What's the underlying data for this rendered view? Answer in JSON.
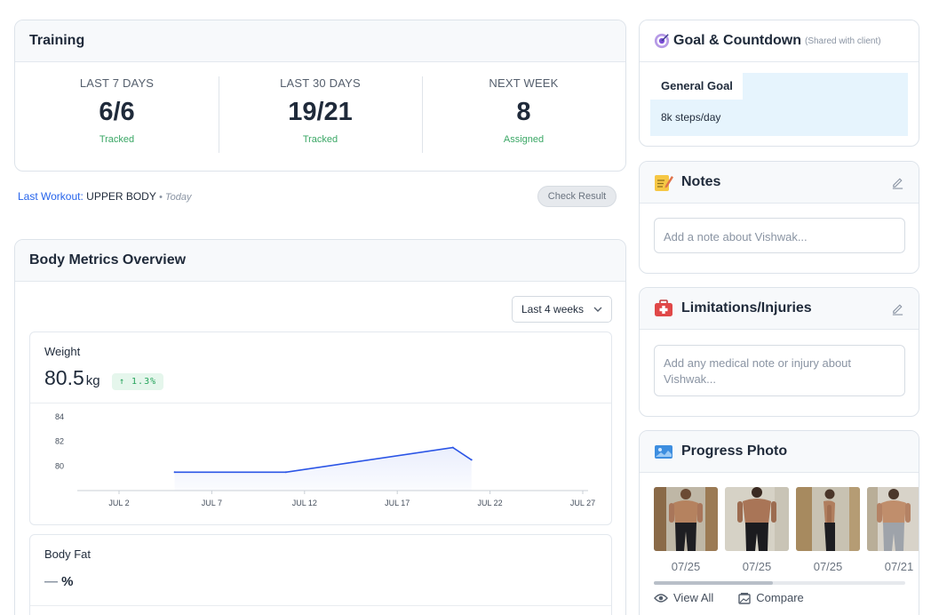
{
  "training": {
    "title": "Training",
    "stats": [
      {
        "label": "LAST 7 DAYS",
        "value": "6/6",
        "sub": "Tracked"
      },
      {
        "label": "LAST 30 DAYS",
        "value": "19/21",
        "sub": "Tracked"
      },
      {
        "label": "NEXT WEEK",
        "value": "8",
        "sub": "Assigned"
      }
    ],
    "last_workout_label": "Last Workout:",
    "last_workout_value": "UPPER BODY",
    "last_workout_day": "• Today",
    "check_result": "Check Result"
  },
  "metrics": {
    "title": "Body Metrics Overview",
    "range": "Last 4 weeks",
    "weight": {
      "title": "Weight",
      "value": "80.5",
      "unit": "kg",
      "change": "↑ 1.3%"
    },
    "bodyfat": {
      "title": "Body Fat",
      "value": "—",
      "unit": "%"
    }
  },
  "chart_data": {
    "type": "area",
    "title": "Weight",
    "x_ticks": [
      "JUL 2",
      "JUL 7",
      "JUL 12",
      "JUL 17",
      "JUL 22",
      "JUL 27"
    ],
    "y_ticks": [
      "84",
      "82",
      "80"
    ],
    "ylim": [
      78,
      84
    ],
    "x_range": [
      "Jul 2",
      "Jul 27"
    ],
    "series": [
      {
        "values": [
          {
            "x": "Jul 5",
            "y": 79.5
          },
          {
            "x": "Jul 11",
            "y": 79.5
          },
          {
            "x": "Jul 20",
            "y": 81.5
          },
          {
            "x": "Jul 21",
            "y": 80.5
          }
        ]
      }
    ],
    "line_color": "#2b55e6",
    "grid": false
  },
  "goal": {
    "title": "Goal & Countdown",
    "note": "(Shared with client)",
    "label": "General Goal",
    "value": "8k steps/day"
  },
  "notes": {
    "title": "Notes",
    "placeholder": "Add a note about Vishwak..."
  },
  "limits": {
    "title": "Limitations/Injuries",
    "placeholder": "Add any medical note or injury about Vishwak..."
  },
  "progress": {
    "title": "Progress Photo",
    "dates": [
      "07/25",
      "07/25",
      "07/25",
      "07/21"
    ],
    "view_all": "View All",
    "compare": "Compare"
  },
  "colors": {
    "accent_blue": "#2563eb",
    "success_green": "#3aa765",
    "goal_bg": "#e6f4fd"
  }
}
